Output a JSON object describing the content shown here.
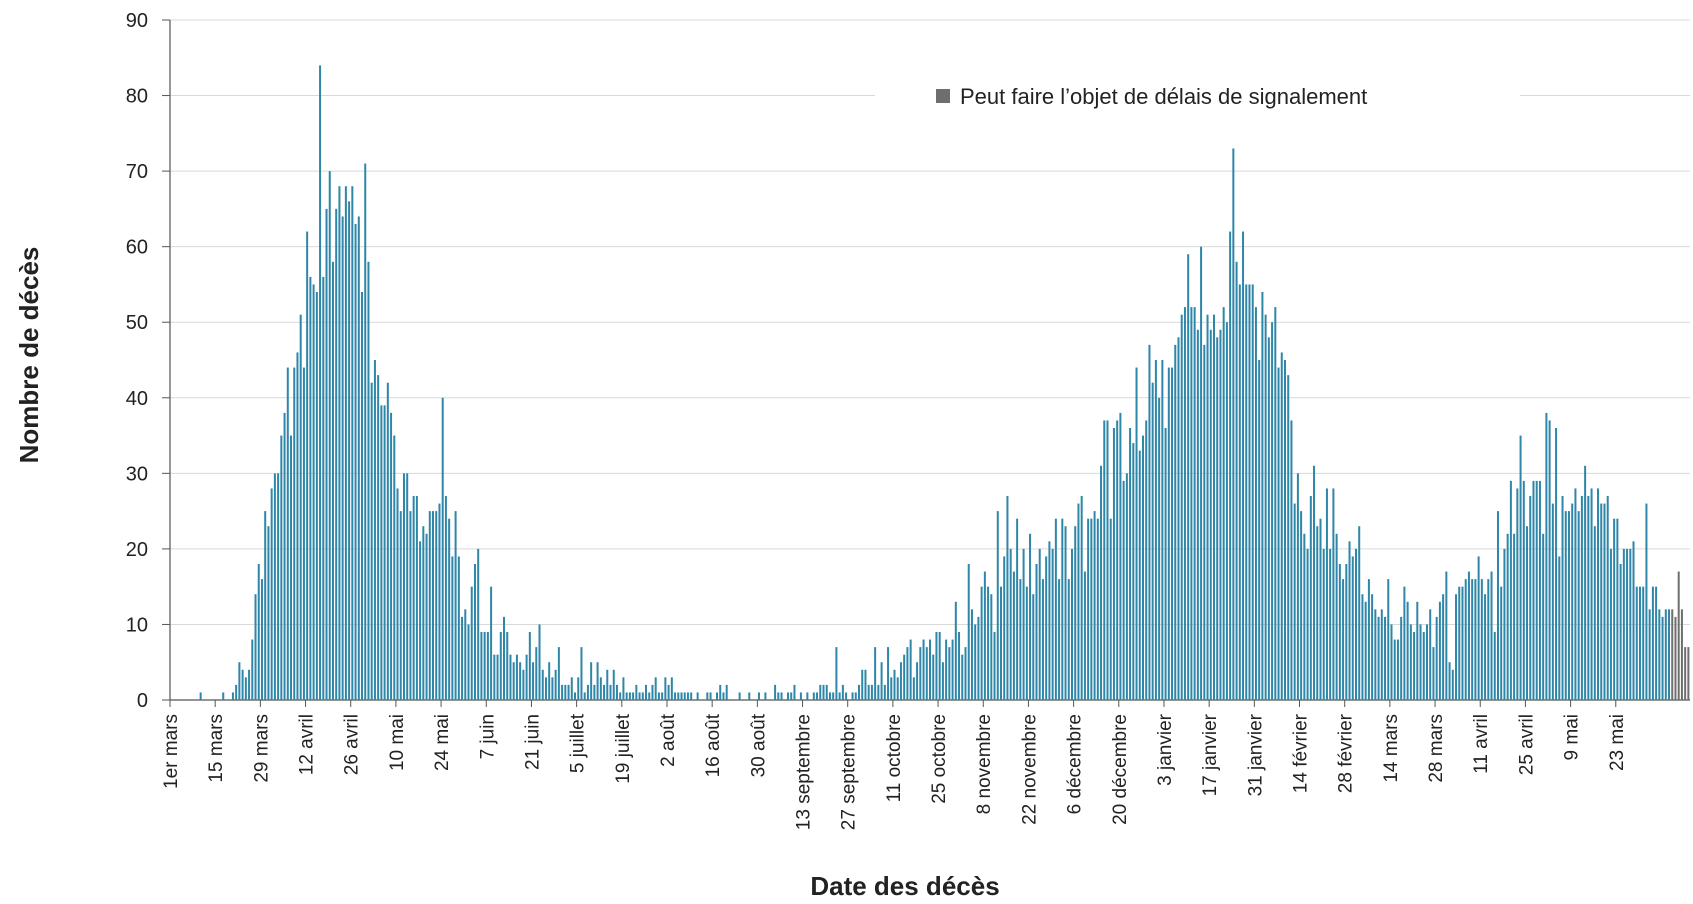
{
  "chart_data": {
    "type": "bar",
    "ylabel": "Nombre de décès",
    "xlabel": "Date des décès",
    "ylim": [
      0,
      90
    ],
    "yticks": [
      0,
      10,
      20,
      30,
      40,
      50,
      60,
      70,
      80,
      90
    ],
    "grid": "horizontal",
    "legend_placement": "top-right",
    "colors": {
      "main": "#2E86A8",
      "delayed": "#6E6E6E",
      "grid": "#d9d9d9",
      "axis": "#555555"
    },
    "x_tick_labels": [
      "1er mars",
      "15 mars",
      "29 mars",
      "12 avril",
      "26 avril",
      "10 mai",
      "24 mai",
      "7 juin",
      "21 juin",
      "5 juillet",
      "19 juillet",
      "2 août",
      "16 août",
      "30 août",
      "13 septembre",
      "27 septembre",
      "11 octobre",
      "25 octobre",
      "8 novembre",
      "22 novembre",
      "6 décembre",
      "20 décembre",
      "3 janvier",
      "17 janvier",
      "31 janvier",
      "14 février",
      "28 février",
      "14 mars",
      "28 mars",
      "11 avril",
      "25 avril",
      "9 mai",
      "23 mai"
    ],
    "series": [
      {
        "name": "",
        "values": [
          0,
          0,
          0,
          0,
          0,
          0,
          0,
          0,
          0,
          1,
          0,
          0,
          0,
          0,
          0,
          0,
          1,
          0,
          0,
          1,
          2,
          5,
          4,
          3,
          4,
          8,
          14,
          18,
          16,
          25,
          23,
          28,
          30,
          30,
          35,
          38,
          44,
          35,
          44,
          46,
          51,
          44,
          62,
          56,
          55,
          54,
          84,
          56,
          65,
          70,
          58,
          65,
          68,
          64,
          68,
          66,
          68,
          63,
          64,
          54,
          71,
          58,
          42,
          45,
          43,
          39,
          39,
          42,
          38,
          35,
          28,
          25,
          30,
          30,
          25,
          27,
          27,
          21,
          23,
          22,
          25,
          25,
          25,
          26,
          40,
          27,
          24,
          19,
          25,
          19,
          11,
          12,
          10,
          15,
          18,
          20,
          9,
          9,
          9,
          15,
          6,
          6,
          9,
          11,
          9,
          6,
          5,
          6,
          5,
          4,
          6,
          9,
          5,
          7,
          10,
          4,
          3,
          5,
          3,
          4,
          7,
          2,
          2,
          2,
          3,
          1,
          3,
          7,
          1,
          2,
          5,
          2,
          5,
          3,
          2,
          4,
          2,
          4,
          2,
          1,
          3,
          1,
          1,
          1,
          2,
          1,
          1,
          2,
          1,
          2,
          3,
          1,
          1,
          3,
          2,
          3,
          1,
          1,
          1,
          1,
          1,
          1,
          0,
          1,
          0,
          0,
          1,
          1,
          0,
          1,
          2,
          1,
          2,
          0,
          0,
          0,
          1,
          0,
          0,
          1,
          0,
          0,
          1,
          0,
          1,
          0,
          0,
          2,
          1,
          1,
          0,
          1,
          1,
          2,
          0,
          1,
          0,
          1,
          0,
          1,
          1,
          2,
          2,
          2,
          1,
          1,
          7,
          1,
          2,
          1,
          0,
          1,
          1,
          2,
          4,
          4,
          2,
          2,
          7,
          2,
          5,
          2,
          7,
          3,
          4,
          3,
          5,
          6,
          7,
          8,
          3,
          5,
          7,
          8,
          7,
          8,
          6,
          9,
          9,
          5,
          8,
          7,
          8,
          13,
          9,
          6,
          7,
          18,
          12,
          10,
          11,
          15,
          17,
          15,
          14,
          9,
          25,
          15,
          19,
          27,
          20,
          17,
          24,
          16,
          20,
          15,
          22,
          14,
          18,
          20,
          16,
          19,
          21,
          20,
          24,
          16,
          24,
          23,
          16,
          20,
          23,
          26,
          27,
          17,
          24,
          24,
          25,
          24,
          31,
          37,
          37,
          24,
          36,
          37,
          38,
          29,
          30,
          36,
          34,
          44,
          33,
          35,
          37,
          47,
          42,
          45,
          40,
          45,
          36,
          44,
          44,
          47,
          48,
          51,
          52,
          59,
          52,
          52,
          49,
          60,
          47,
          51,
          49,
          51,
          48,
          49,
          52,
          50,
          62,
          73,
          58,
          55,
          62,
          55,
          55,
          55,
          52,
          45,
          54,
          51,
          48,
          50,
          52,
          44,
          46,
          45,
          43,
          37,
          26,
          30,
          25,
          22,
          20,
          27,
          31,
          23,
          24,
          20,
          28,
          20,
          28,
          22,
          18,
          16,
          18,
          21,
          19,
          20,
          23,
          14,
          13,
          16,
          14,
          12,
          11,
          12,
          11,
          16,
          10,
          8,
          8,
          11,
          15,
          13,
          10,
          9,
          13,
          10,
          9,
          10,
          12,
          7,
          11,
          13,
          14,
          17,
          5,
          4,
          14,
          15,
          15,
          16,
          17,
          16,
          16,
          19,
          16,
          14,
          16,
          17,
          9,
          25,
          15,
          20,
          22,
          29,
          22,
          28,
          35,
          29,
          23,
          27,
          29,
          29,
          29,
          22,
          38,
          37,
          26,
          36,
          19,
          27,
          25,
          25,
          26,
          28,
          25,
          27,
          31,
          27,
          28,
          23,
          28,
          26,
          26,
          27,
          20,
          24,
          24,
          18,
          20,
          20,
          20,
          21,
          15,
          15,
          15,
          26,
          12,
          15,
          15,
          12,
          11,
          12,
          12
        ]
      },
      {
        "name": "Peut faire l’objet de délais de signalement",
        "values": [
          12,
          11,
          17,
          12,
          7,
          7
        ]
      }
    ]
  }
}
